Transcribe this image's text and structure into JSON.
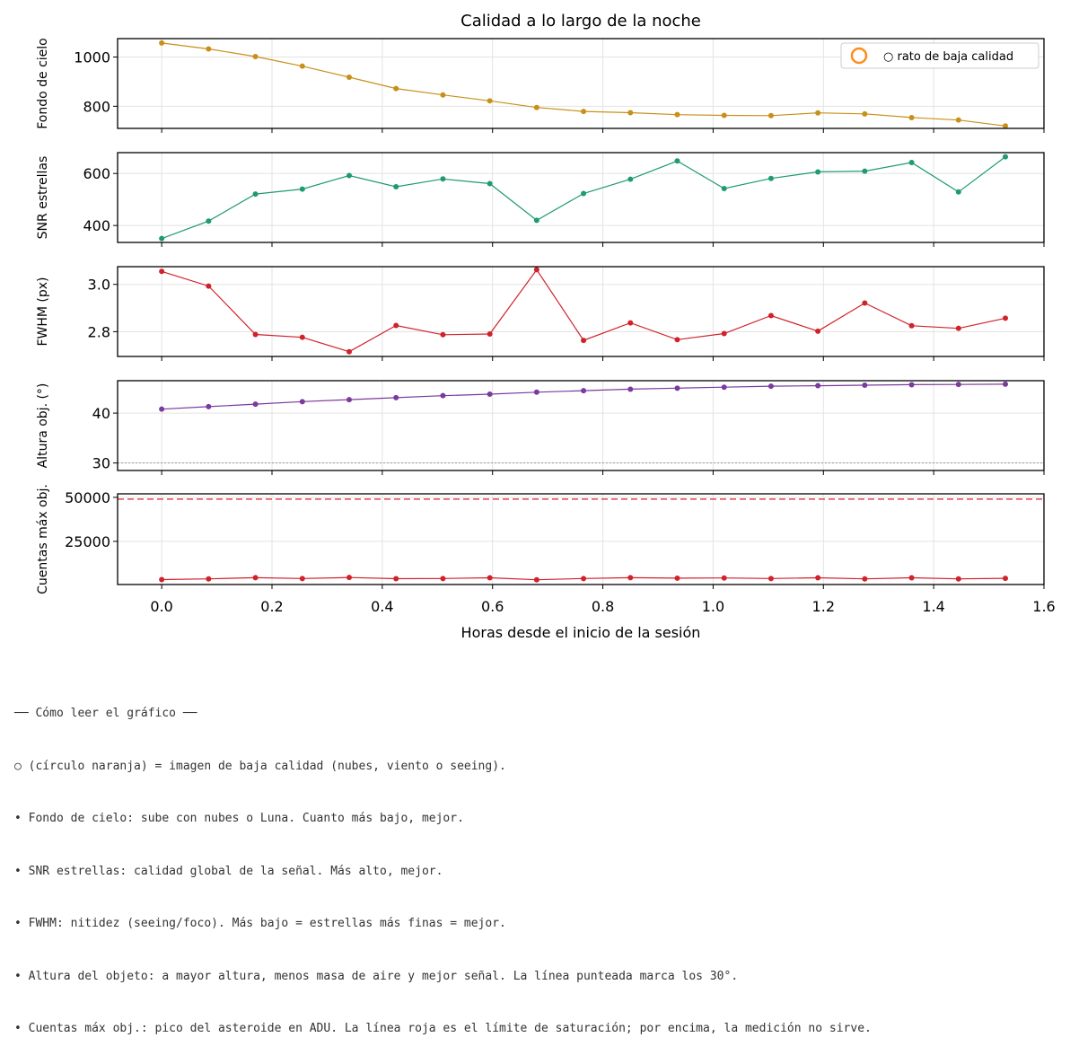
{
  "title": "Calidad a lo largo de la noche",
  "xlabel": "Horas desde el inicio de la sesión",
  "x_ticks": [
    "0.0",
    "0.2",
    "0.4",
    "0.6",
    "0.8",
    "1.0",
    "1.2",
    "1.4",
    "1.6"
  ],
  "legend": {
    "label": "○ rato de baja calidad",
    "marker_color": "#ff8c1a",
    "position": "upper-right"
  },
  "chart_data": [
    {
      "type": "line",
      "ylabel": "Fondo de cielo",
      "color": "#c8901a",
      "xlim": [
        -0.08,
        1.6
      ],
      "ylim": [
        710,
        1075
      ],
      "yticks": [
        800,
        1000
      ],
      "x": [
        0.0,
        0.085,
        0.17,
        0.255,
        0.34,
        0.425,
        0.51,
        0.595,
        0.68,
        0.765,
        0.85,
        0.935,
        1.02,
        1.105,
        1.19,
        1.275,
        1.36,
        1.445,
        1.53
      ],
      "values": [
        1057,
        1033,
        1002,
        963,
        918,
        872,
        846,
        822,
        795,
        779,
        774,
        766,
        763,
        762,
        773,
        769,
        754,
        744,
        720
      ],
      "grid": true
    },
    {
      "type": "line",
      "ylabel": "SNR estrellas",
      "color": "#1f9a73",
      "xlim": [
        -0.08,
        1.6
      ],
      "ylim": [
        335,
        680
      ],
      "yticks": [
        400,
        600
      ],
      "x": [
        0.0,
        0.085,
        0.17,
        0.255,
        0.34,
        0.425,
        0.51,
        0.595,
        0.68,
        0.765,
        0.85,
        0.935,
        1.02,
        1.105,
        1.19,
        1.275,
        1.36,
        1.445,
        1.53
      ],
      "values": [
        350,
        417,
        521,
        540,
        592,
        549,
        579,
        561,
        420,
        523,
        578,
        648,
        542,
        581,
        606,
        609,
        642,
        529,
        664
      ],
      "grid": true
    },
    {
      "type": "line",
      "ylabel": "FWHM (px)",
      "color": "#d0222a",
      "xlim": [
        -0.08,
        1.6
      ],
      "ylim": [
        2.695,
        3.075
      ],
      "yticks": [
        2.8,
        3.0
      ],
      "ytick_labels": [
        "2.8",
        "3.0"
      ],
      "x": [
        0.0,
        0.085,
        0.17,
        0.255,
        0.34,
        0.425,
        0.51,
        0.595,
        0.68,
        0.765,
        0.85,
        0.935,
        1.02,
        1.105,
        1.19,
        1.275,
        1.36,
        1.445,
        1.53
      ],
      "values": [
        3.055,
        2.993,
        2.788,
        2.776,
        2.715,
        2.826,
        2.787,
        2.79,
        3.062,
        2.763,
        2.837,
        2.766,
        2.792,
        2.868,
        2.802,
        2.921,
        2.825,
        2.814,
        2.857
      ],
      "grid": true
    },
    {
      "type": "line",
      "ylabel": "Altura obj. (°)",
      "color": "#7a3a9e",
      "xlim": [
        -0.08,
        1.6
      ],
      "ylim": [
        28.5,
        46.5
      ],
      "yticks": [
        30,
        40
      ],
      "reference_line": {
        "value": 30,
        "style": "dotted",
        "color": "#9a9a9a"
      },
      "x": [
        0.0,
        0.085,
        0.17,
        0.255,
        0.34,
        0.425,
        0.51,
        0.595,
        0.68,
        0.765,
        0.85,
        0.935,
        1.02,
        1.105,
        1.19,
        1.275,
        1.36,
        1.445,
        1.53
      ],
      "values": [
        40.8,
        41.3,
        41.8,
        42.3,
        42.7,
        43.1,
        43.5,
        43.8,
        44.2,
        44.5,
        44.8,
        45.0,
        45.2,
        45.4,
        45.5,
        45.6,
        45.7,
        45.75,
        45.8
      ],
      "grid": true
    },
    {
      "type": "line",
      "ylabel": "Cuentas máx obj.",
      "color": "#d0222a",
      "xlim": [
        -0.08,
        1.6
      ],
      "ylim": [
        500,
        52000
      ],
      "yticks": [
        25000,
        50000
      ],
      "reference_line": {
        "value": 49000,
        "style": "dashed",
        "color": "#e0474c"
      },
      "x": [
        0.0,
        0.085,
        0.17,
        0.255,
        0.34,
        0.425,
        0.51,
        0.595,
        0.68,
        0.765,
        0.85,
        0.935,
        1.02,
        1.105,
        1.19,
        1.275,
        1.36,
        1.445,
        1.53
      ],
      "values": [
        3300,
        3700,
        4400,
        3900,
        4500,
        3800,
        3900,
        4300,
        3200,
        3900,
        4400,
        4100,
        4200,
        3900,
        4300,
        3700,
        4300,
        3700,
        4000
      ],
      "grid": true
    }
  ],
  "notes": [
    "── Cómo leer el gráfico ──",
    "○ (círculo naranja) = imagen de baja calidad (nubes, viento o seeing).",
    "• Fondo de cielo: sube con nubes o Luna. Cuanto más bajo, mejor.",
    "• SNR estrellas: calidad global de la señal. Más alto, mejor.",
    "• FWHM: nitidez (seeing/foco). Más bajo = estrellas más finas = mejor.",
    "• Altura del objeto: a mayor altura, menos masa de aire y mejor señal. La línea punteada marca los 30°.",
    "• Cuentas máx obj.: pico del asteroide en ADU. La línea roja es el límite de saturación; por encima, la medición no sirve."
  ]
}
